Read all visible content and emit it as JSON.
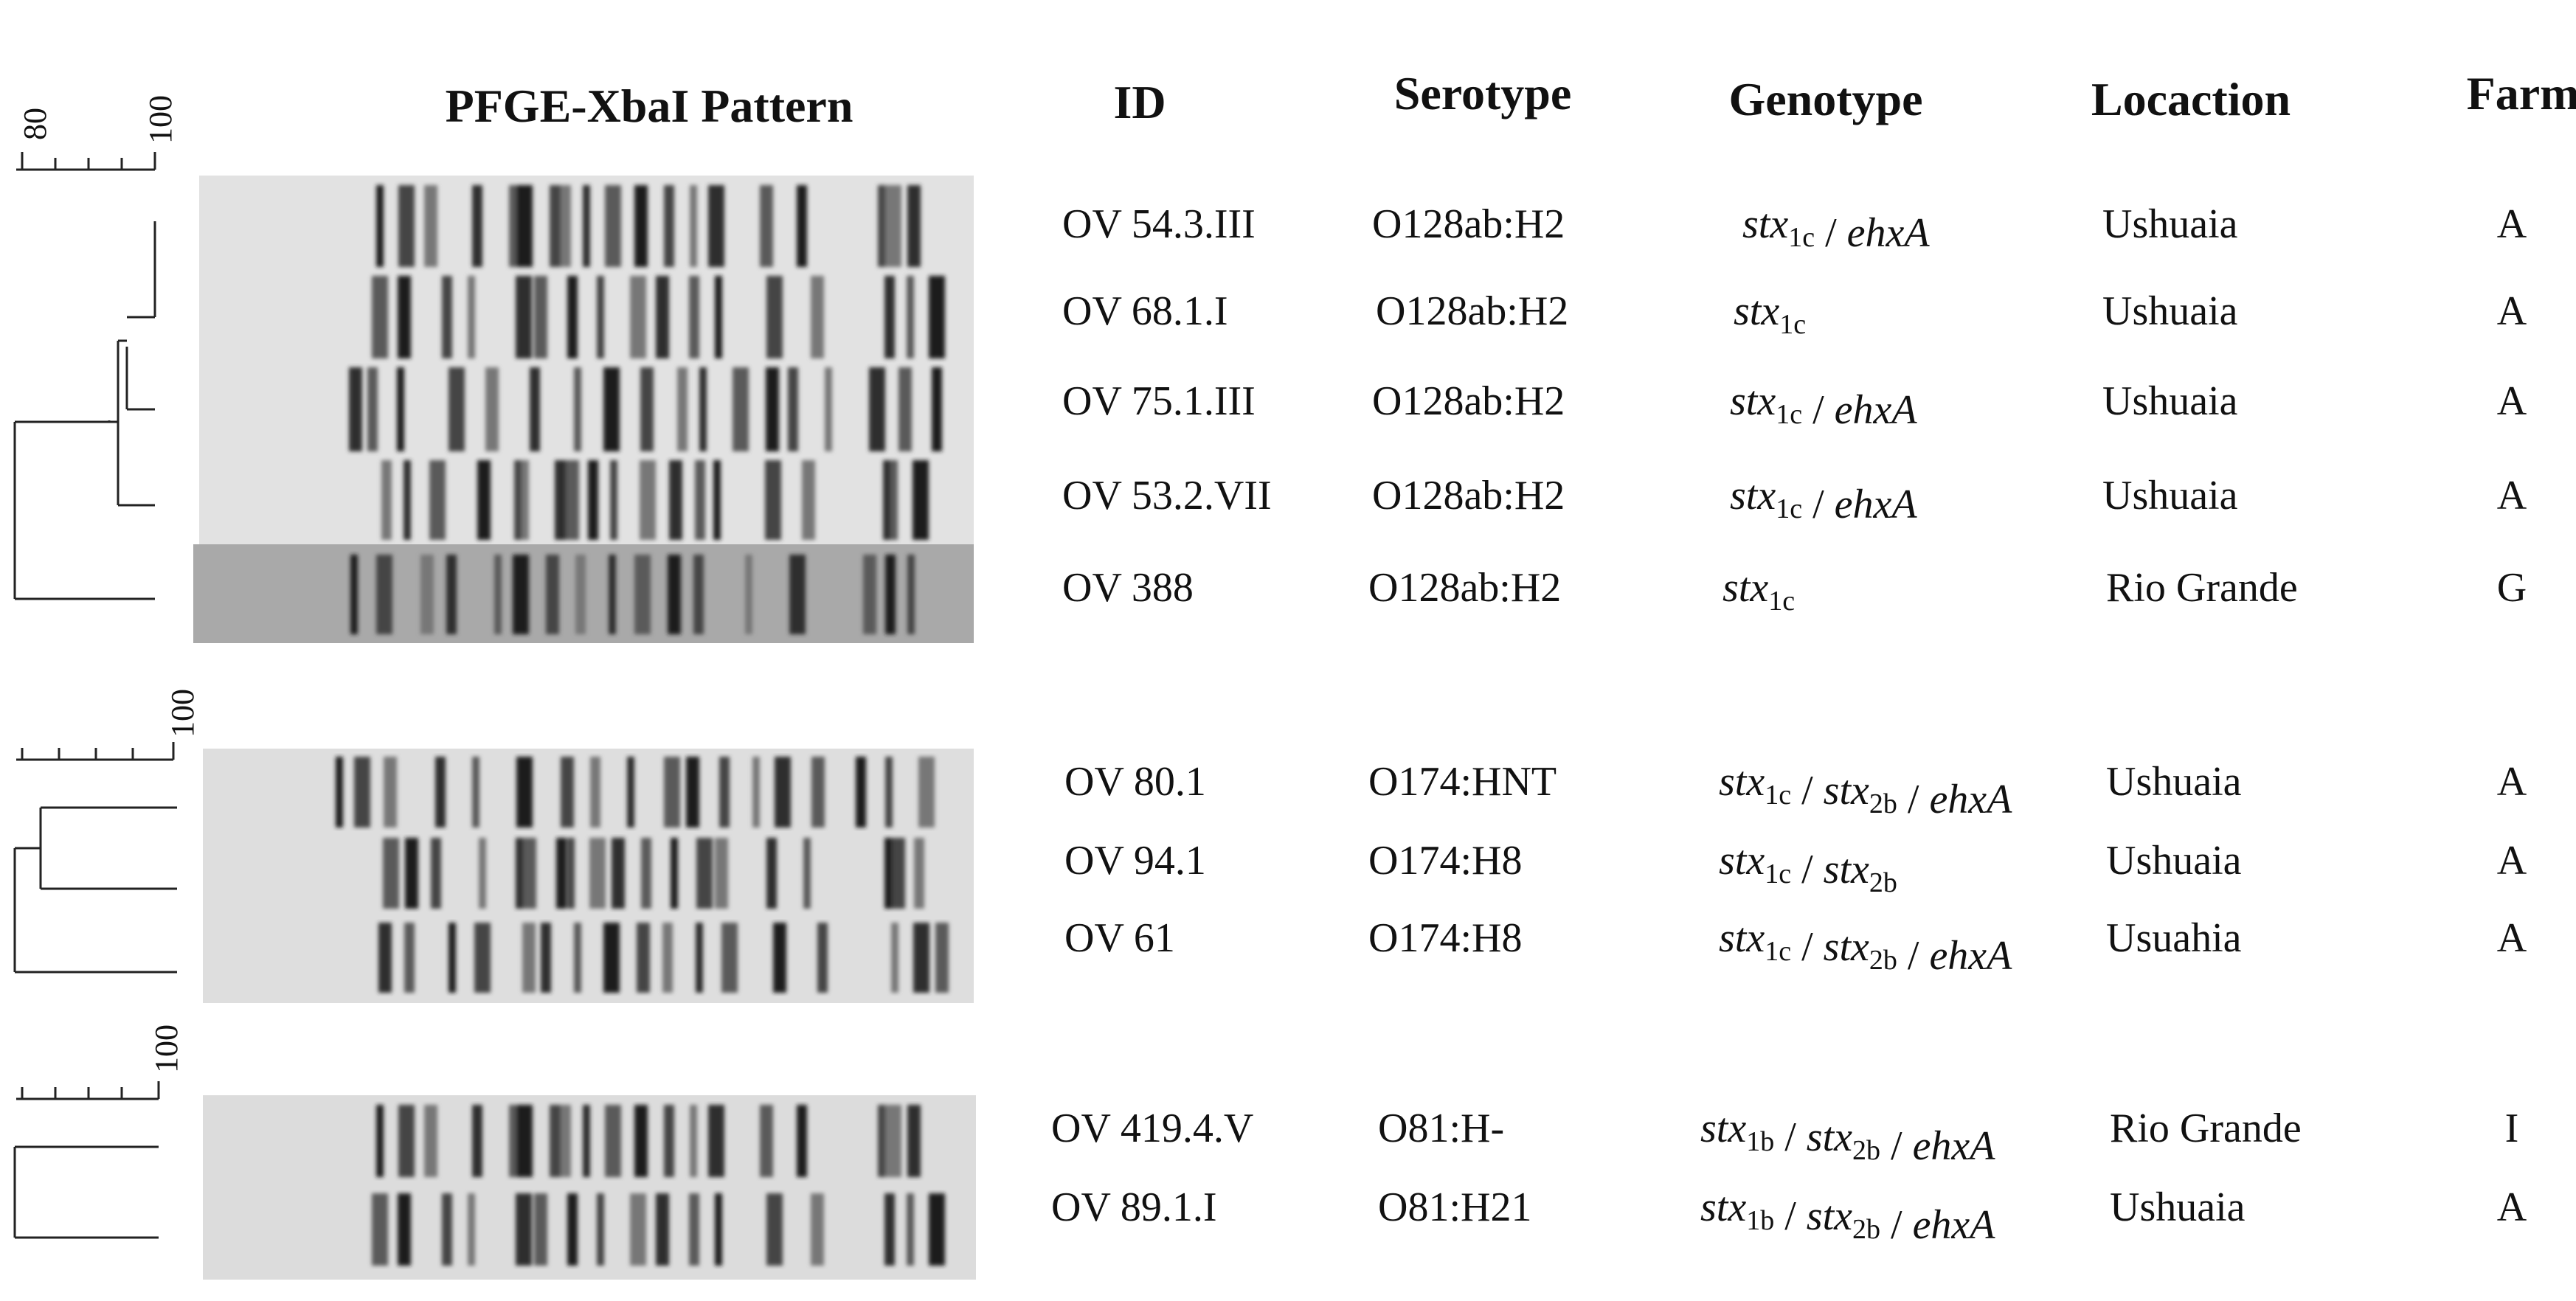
{
  "headers": {
    "pattern": "PFGE-XbaI Pattern",
    "id": "ID",
    "serotype": "Serotype",
    "genotype": "Genotype",
    "location": "Locaction",
    "farm": "Farm"
  },
  "scales": [
    {
      "labels": [
        "80",
        "100"
      ]
    },
    {
      "labels": [
        "100"
      ]
    },
    {
      "labels": [
        "100"
      ]
    }
  ],
  "rows": [
    {
      "id": "OV 54.3.III",
      "serotype": "O128ab:H2",
      "genotype": [
        [
          "i",
          "stx"
        ],
        [
          "s",
          "1c"
        ],
        [
          "t",
          " / "
        ],
        [
          "i",
          "ehxA"
        ]
      ],
      "location": "Ushuaia",
      "farm": "A"
    },
    {
      "id": "OV 68.1.I",
      "serotype": "O128ab:H2",
      "genotype": [
        [
          "i",
          "stx"
        ],
        [
          "s",
          "1c"
        ]
      ],
      "location": "Ushuaia",
      "farm": "A"
    },
    {
      "id": "OV 75.1.III",
      "serotype": "O128ab:H2",
      "genotype": [
        [
          "i",
          "stx"
        ],
        [
          "s",
          "1c"
        ],
        [
          "t",
          " / "
        ],
        [
          "i",
          "ehxA"
        ]
      ],
      "location": "Ushuaia",
      "farm": "A"
    },
    {
      "id": "OV 53.2.VII",
      "serotype": "O128ab:H2",
      "genotype": [
        [
          "i",
          "stx"
        ],
        [
          "s",
          "1c"
        ],
        [
          "t",
          " / "
        ],
        [
          "i",
          "ehxA"
        ]
      ],
      "location": "Ushuaia",
      "farm": "A"
    },
    {
      "id": "OV 388",
      "serotype": "O128ab:H2",
      "genotype": [
        [
          "i",
          "stx"
        ],
        [
          "s",
          "1c"
        ]
      ],
      "location": "Rio Grande",
      "farm": "G"
    },
    {
      "id": "OV 80.1",
      "serotype": "O174:HNT",
      "genotype": [
        [
          "i",
          "stx"
        ],
        [
          "s",
          "1c"
        ],
        [
          "t",
          " / "
        ],
        [
          "i",
          "stx"
        ],
        [
          "s",
          "2b"
        ],
        [
          "t",
          " / "
        ],
        [
          "i",
          "ehxA"
        ]
      ],
      "location": "Ushuaia",
      "farm": "A"
    },
    {
      "id": "OV 94.1",
      "serotype": "O174:H8",
      "genotype": [
        [
          "i",
          "stx"
        ],
        [
          "s",
          "1c"
        ],
        [
          "t",
          " / "
        ],
        [
          "i",
          "stx"
        ],
        [
          "s",
          "2b"
        ]
      ],
      "location": "Ushuaia",
      "farm": "A"
    },
    {
      "id": "OV 61",
      "serotype": "O174:H8",
      "genotype": [
        [
          "i",
          "stx"
        ],
        [
          "s",
          "1c"
        ],
        [
          "t",
          " / "
        ],
        [
          "i",
          "stx"
        ],
        [
          "s",
          "2b"
        ],
        [
          "t",
          " / "
        ],
        [
          "i",
          "ehxA"
        ]
      ],
      "location": "Usuahia",
      "farm": "A"
    },
    {
      "id": "OV 419.4.V",
      "serotype": "O81:H-",
      "genotype": [
        [
          "i",
          "stx"
        ],
        [
          "s",
          "1b"
        ],
        [
          "t",
          " / "
        ],
        [
          "i",
          "stx"
        ],
        [
          "s",
          "2b"
        ],
        [
          "t",
          " / "
        ],
        [
          "i",
          "ehxA"
        ]
      ],
      "location": "Rio Grande",
      "farm": "I"
    },
    {
      "id": "OV 89.1.I",
      "serotype": "O81:H21",
      "genotype": [
        [
          "i",
          "stx"
        ],
        [
          "s",
          "1b"
        ],
        [
          "t",
          " / "
        ],
        [
          "i",
          "stx"
        ],
        [
          "s",
          "2b"
        ],
        [
          "t",
          " / "
        ],
        [
          "i",
          "ehxA"
        ]
      ],
      "location": "Ushuaia",
      "farm": "A"
    }
  ]
}
